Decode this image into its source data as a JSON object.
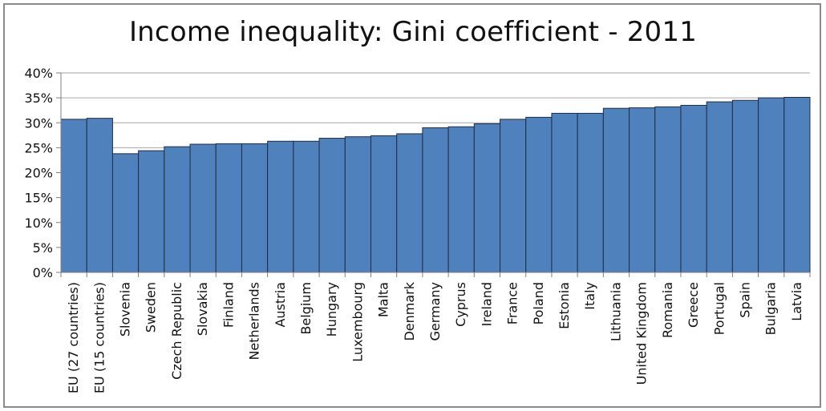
{
  "chart_data": {
    "type": "bar",
    "title": "Income inequality: Gini coefficient - 2011",
    "xlabel": "",
    "ylabel": "",
    "ylim": [
      0,
      40
    ],
    "yticks": [
      "0%",
      "5%",
      "10%",
      "15%",
      "20%",
      "25%",
      "30%",
      "35%",
      "40%"
    ],
    "grid": true,
    "legend": "none",
    "categories": [
      "EU (27 countries)",
      "EU (15 countries)",
      "Slovenia",
      "Sweden",
      "Czech Republic",
      "Slovakia",
      "Finland",
      "Netherlands",
      "Austria",
      "Belgium",
      "Hungary",
      "Luxembourg",
      "Malta",
      "Denmark",
      "Germany",
      "Cyprus",
      "Ireland",
      "France",
      "Poland",
      "Estonia",
      "Italy",
      "Lithuania",
      "United Kingdom",
      "Romania",
      "Greece",
      "Portugal",
      "Spain",
      "Bulgaria",
      "Latvia"
    ],
    "values": [
      30.7,
      30.9,
      23.8,
      24.4,
      25.2,
      25.7,
      25.8,
      25.8,
      26.3,
      26.3,
      26.9,
      27.2,
      27.4,
      27.8,
      29.0,
      29.2,
      29.8,
      30.7,
      31.1,
      31.9,
      31.9,
      32.9,
      33.0,
      33.2,
      33.5,
      34.2,
      34.5,
      35.0,
      35.1
    ],
    "colors": {
      "bar": "#4f81bd",
      "bar_edge": "#1f2d44",
      "grid": "#a6a6a6",
      "axis": "#7f7f7f"
    }
  }
}
